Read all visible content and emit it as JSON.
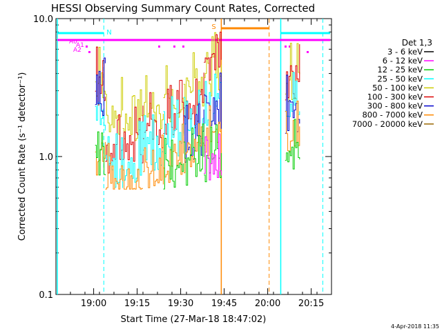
{
  "chart_data": {
    "type": "line",
    "title": "HESSI Observing Summary Count Rates, Corrected",
    "xlabel": "Start Time (27-Mar-18 18:47:02)",
    "ylabel": "Corrected Count Rate (s⁻¹ detector⁻¹)",
    "ylog": true,
    "ylim": [
      0.1,
      10.0
    ],
    "xlim_minutes": [
      0,
      95
    ],
    "xticks": [
      {
        "t": 13,
        "label": "19:00"
      },
      {
        "t": 28,
        "label": "19:15"
      },
      {
        "t": 43,
        "label": "19:30"
      },
      {
        "t": 58,
        "label": "19:45"
      },
      {
        "t": 73,
        "label": "20:00"
      },
      {
        "t": 88,
        "label": "20:15"
      }
    ],
    "yticks": [
      {
        "v": 10.0,
        "label": "10.0"
      },
      {
        "v": 1.0,
        "label": "1.0"
      },
      {
        "v": 0.1,
        "label": "0.1"
      }
    ],
    "legend_title": "Det 1,3",
    "series": [
      {
        "name": "3 - 6 keV",
        "color": "#000000"
      },
      {
        "name": "6 - 12 keV",
        "color": "#ff00ff"
      },
      {
        "name": "12 - 25 keV",
        "color": "#00cc00"
      },
      {
        "name": "25 - 50 keV",
        "color": "#00ffff"
      },
      {
        "name": "50 - 100 keV",
        "color": "#cccc00"
      },
      {
        "name": "100 - 300 keV",
        "color": "#dd0000"
      },
      {
        "name": "300 - 800 keV",
        "color": "#0000cc"
      },
      {
        "name": "800 - 7000 keV",
        "color": "#ff8800"
      },
      {
        "name": "7000 - 20000 keV",
        "color": "#996600"
      }
    ],
    "flags": {
      "attenuator_labels": [
        "A0",
        "A1",
        "A2"
      ],
      "saa_label": "S",
      "night_label": "N"
    },
    "events": {
      "night_start": 16.5,
      "night_end": 66,
      "saa_start": 57,
      "saa_end": 73.5,
      "second_night_start": 77.5,
      "second_night_end": 92
    },
    "segments": [
      {
        "t0": 13.5,
        "t1": 17,
        "levels": {
          "yellow": 3.5,
          "red": 3.0,
          "cyan": 2.0,
          "blue": 2.5,
          "orange": 1.0,
          "green": 1.0
        }
      },
      {
        "t0": 17,
        "t1": 23,
        "levels": {
          "yellow": 2.0,
          "red": 1.0,
          "cyan": 0.8,
          "orange": 0.7
        }
      },
      {
        "t0": 23,
        "t1": 30,
        "levels": {
          "yellow": 1.7,
          "red": 1.2,
          "cyan": 0.9,
          "orange": 0.65
        }
      },
      {
        "t0": 30,
        "t1": 37,
        "levels": {
          "yellow": 2.1,
          "red": 1.5,
          "cyan": 1.1,
          "orange": 0.75
        }
      },
      {
        "t0": 37,
        "t1": 44,
        "levels": {
          "yellow": 2.4,
          "red": 1.9,
          "cyan": 1.4,
          "orange": 0.9,
          "green": 0.75
        }
      },
      {
        "t0": 44,
        "t1": 51,
        "levels": {
          "yellow": 3.0,
          "red": 2.2,
          "cyan": 1.7,
          "blue": 1.2,
          "orange": 1.0,
          "green": 0.85
        }
      },
      {
        "t0": 51,
        "t1": 57,
        "levels": {
          "yellow": 3.8,
          "red": 4.5,
          "cyan": 2.3,
          "blue": 2.2,
          "orange": 1.3,
          "green": 0.9,
          "magenta": 0.85
        }
      },
      {
        "t0": 79,
        "t1": 84,
        "levels": {
          "yellow": 3.2,
          "red": 3.5,
          "cyan": 2.2,
          "blue": 2.0,
          "orange": 1.3,
          "green": 1.0
        }
      }
    ]
  }
}
